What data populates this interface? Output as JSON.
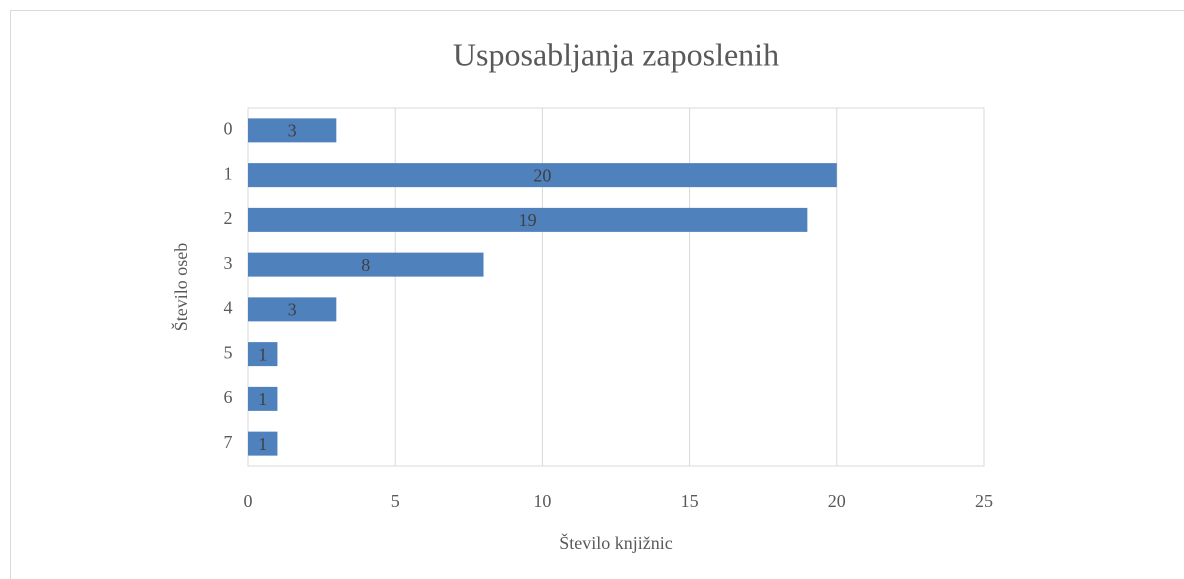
{
  "chart_data": {
    "type": "barh",
    "title": "Usposabljanja zaposlenih",
    "categories": [
      "0",
      "1",
      "2",
      "3",
      "4",
      "5",
      "6",
      "7"
    ],
    "values": [
      3,
      20,
      19,
      8,
      3,
      1,
      1,
      1
    ],
    "color": "#4f81bd",
    "xlabel": "Število knjižnic",
    "ylabel": "Število oseb",
    "xlim": [
      0,
      25
    ],
    "xticks": [
      0,
      5,
      10,
      15,
      20,
      25
    ],
    "grid": true,
    "data_labels": true
  }
}
